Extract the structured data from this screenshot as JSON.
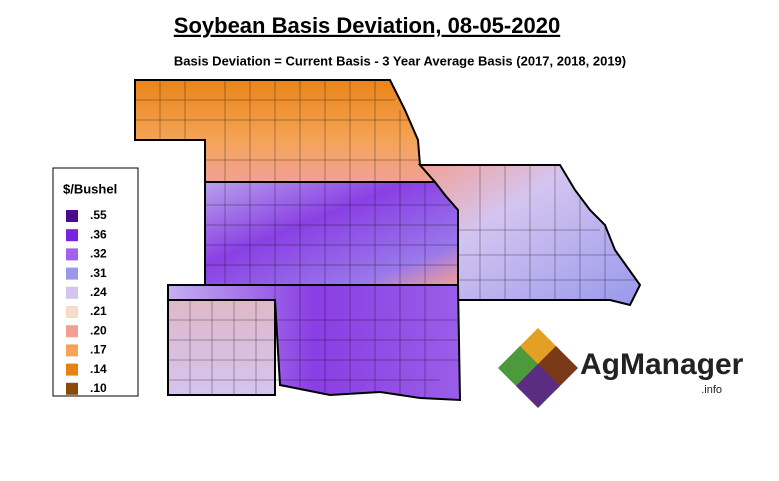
{
  "title": "Soybean Basis Deviation, 08-05-2020",
  "subtitle": "Basis Deviation = Current Basis - 3 Year Average Basis (2017, 2018, 2019)",
  "legend": {
    "title": "$/Bushel",
    "items": [
      {
        "label": ".55",
        "color": "#4a0a8a"
      },
      {
        "label": ".36",
        "color": "#7a22e0"
      },
      {
        "label": ".32",
        "color": "#a062ea"
      },
      {
        "label": ".31",
        "color": "#9898ec"
      },
      {
        "label": ".24",
        "color": "#d4c4f0"
      },
      {
        "label": ".21",
        "color": "#f4dcc8"
      },
      {
        "label": ".20",
        "color": "#f2a096"
      },
      {
        "label": ".17",
        "color": "#f4a458"
      },
      {
        "label": ".14",
        "color": "#ea8010"
      },
      {
        "label": ".10",
        "color": "#8a4a0c"
      }
    ]
  },
  "logo": {
    "name": "AgManager",
    "suffix": ".info"
  }
}
